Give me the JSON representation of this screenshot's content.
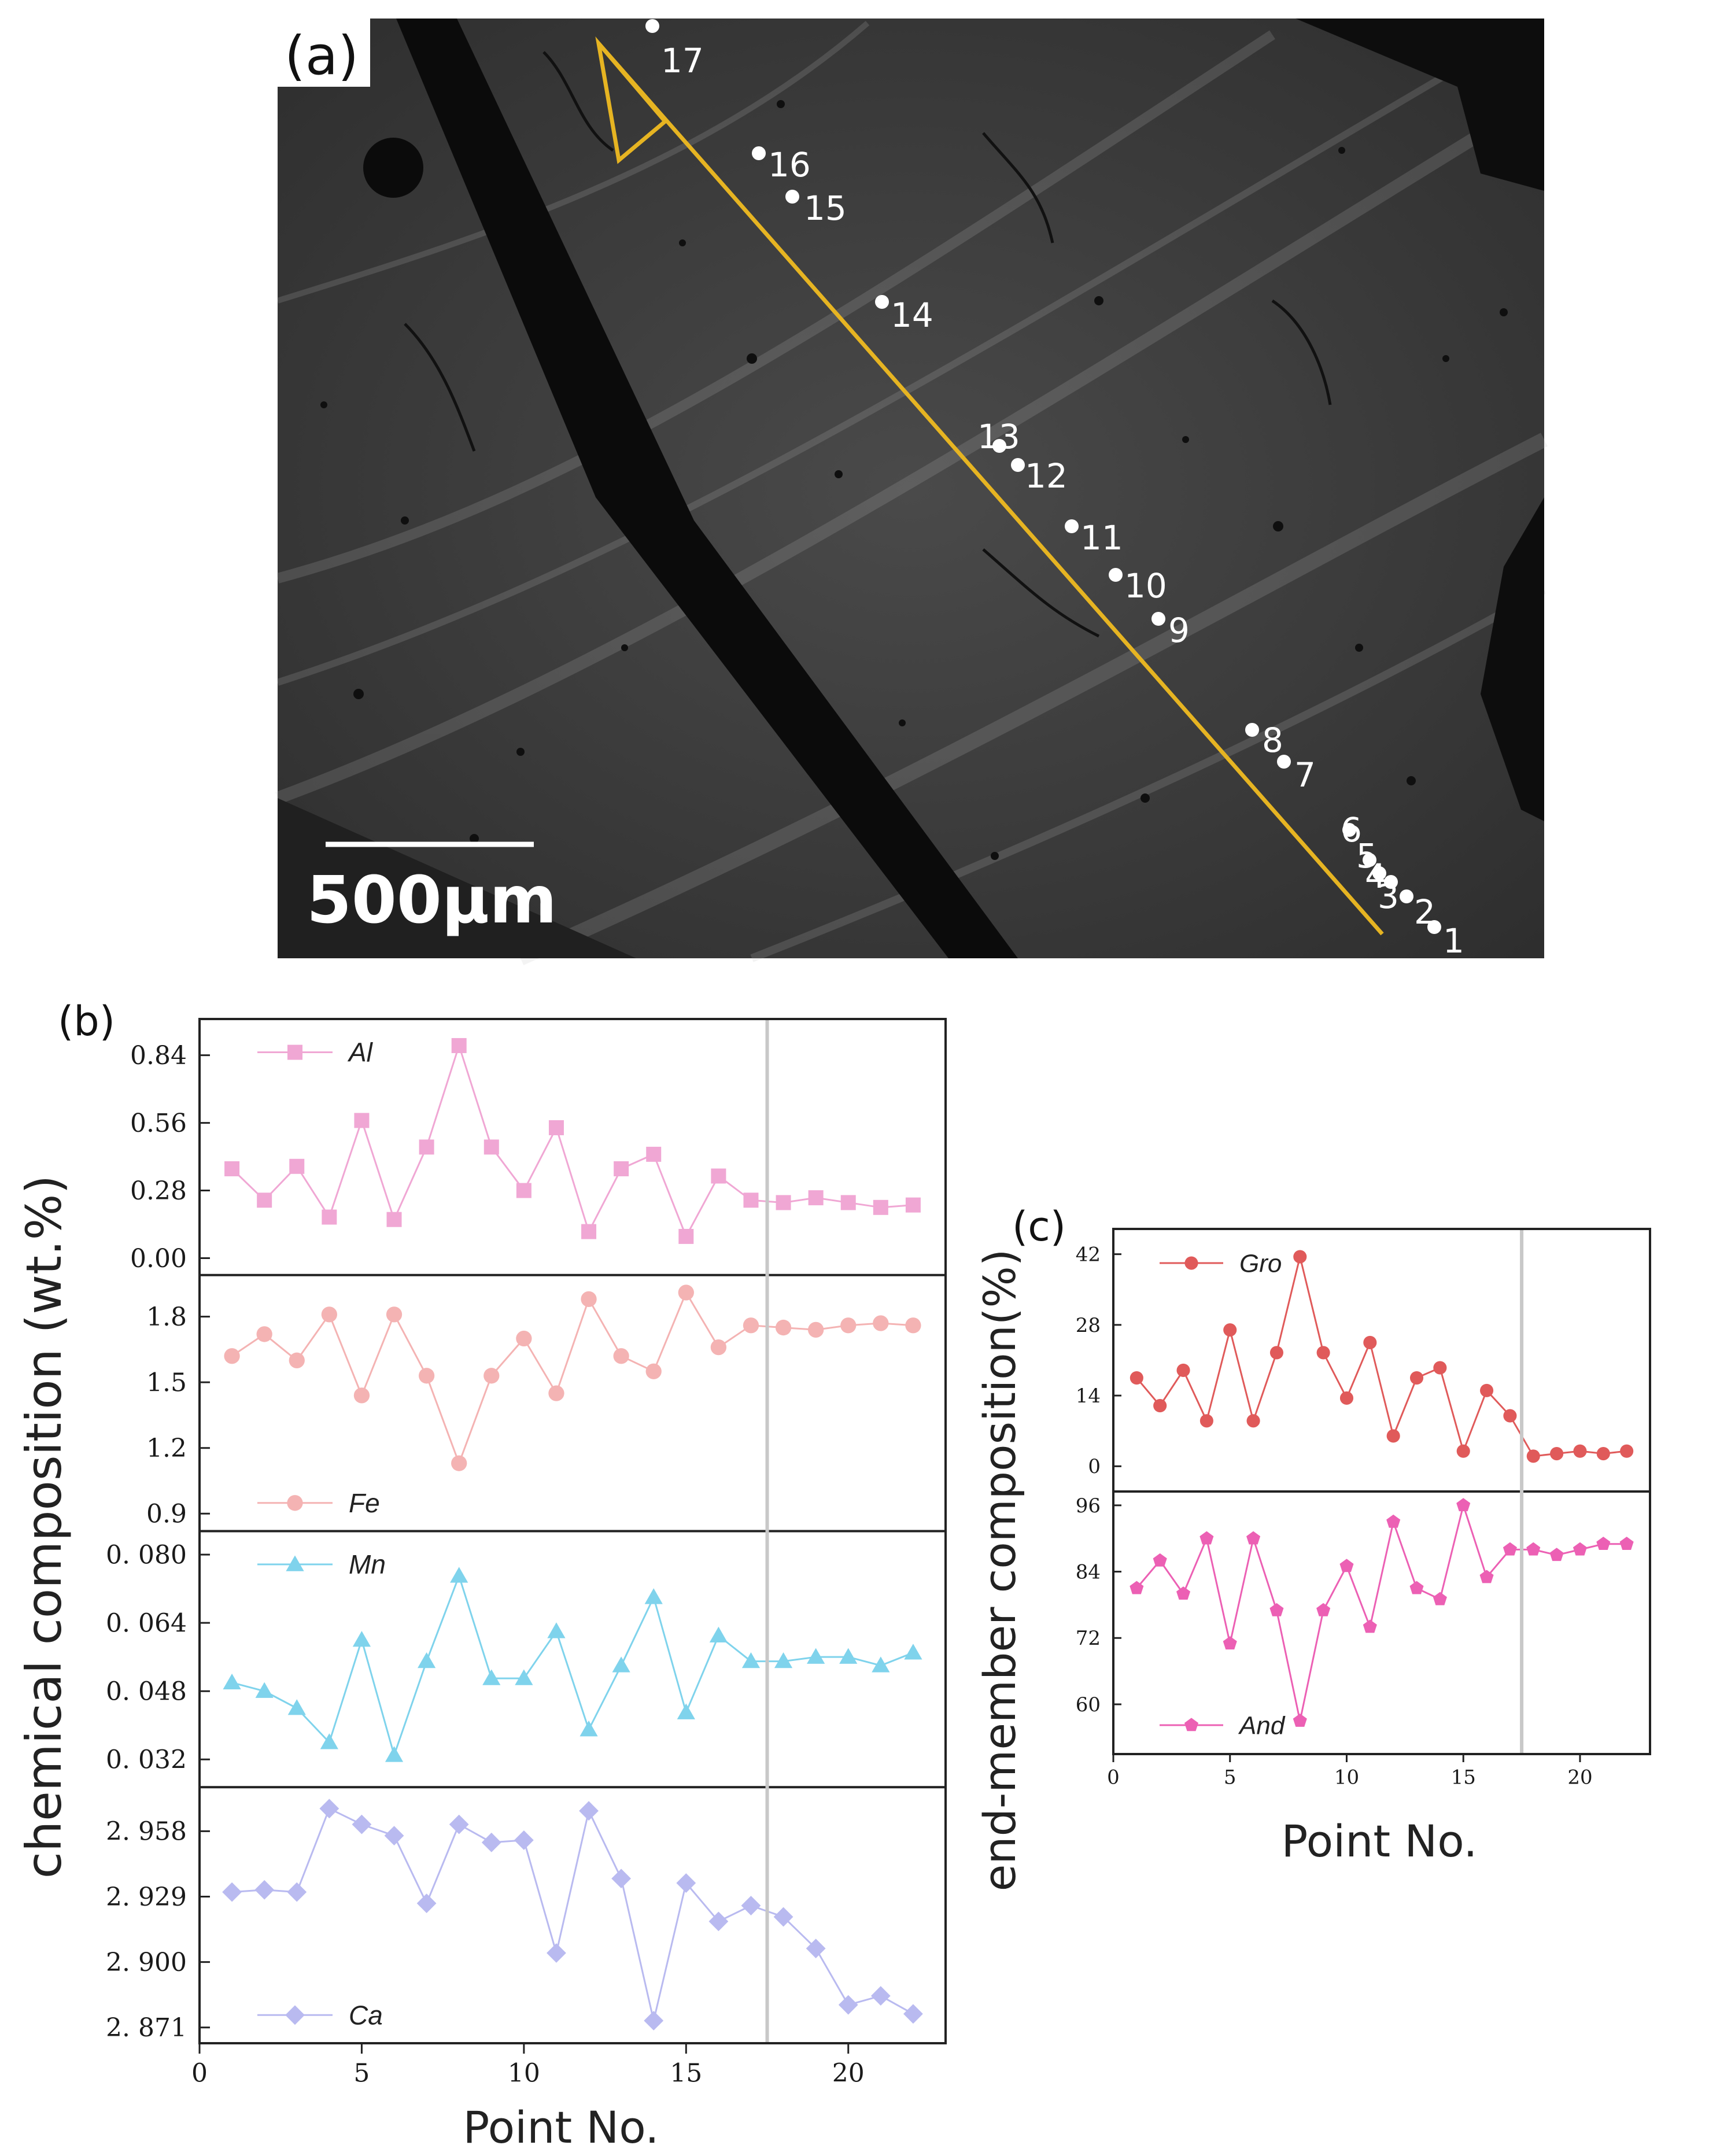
{
  "panel_labels": {
    "a": "(a)",
    "b": "(b)",
    "c": "(c)"
  },
  "image_a": {
    "scale_bar_label": "500μm",
    "point_labels": [
      "1",
      "2",
      "3",
      "4",
      "5",
      "6",
      "7",
      "8",
      "9",
      "10",
      "11",
      "12",
      "13",
      "14",
      "15",
      "16",
      "17"
    ],
    "colors": {
      "line": "#e6b422",
      "background": "#3a3a3a",
      "dark": "#111111",
      "point": "#ffffff"
    }
  },
  "chart_data": [
    {
      "id": "b",
      "type": "line",
      "title": "",
      "ylabel": "chemical composition (wt.%)",
      "xlabel": "Point  No.",
      "xlim": [
        0,
        23
      ],
      "xticks": [
        0,
        5,
        10,
        15,
        20
      ],
      "xtick_labels": [
        "0",
        "5",
        "10",
        "15",
        "20"
      ],
      "divider_x": 17.5,
      "x": [
        1,
        2,
        3,
        4,
        5,
        6,
        7,
        8,
        9,
        10,
        11,
        12,
        13,
        14,
        15,
        16,
        17,
        18,
        19,
        20,
        21,
        22
      ],
      "series": [
        {
          "name": "Al",
          "marker": "square",
          "color": "#f0a7d4",
          "legend_pos": "top-left",
          "ylim": [
            -0.07,
            0.99
          ],
          "ticks": [
            0.0,
            0.28,
            0.56,
            0.84
          ],
          "tick_labels": [
            "0.00",
            "0.28",
            "0.56",
            "0.84"
          ],
          "values": [
            0.37,
            0.24,
            0.38,
            0.17,
            0.57,
            0.16,
            0.46,
            0.88,
            0.46,
            0.28,
            0.54,
            0.11,
            0.37,
            0.43,
            0.09,
            0.34,
            0.24,
            0.23,
            0.25,
            0.23,
            0.21,
            0.22
          ]
        },
        {
          "name": "Fe",
          "marker": "circle",
          "color": "#f4b3b3",
          "legend_pos": "bottom-left",
          "ylim": [
            0.82,
            1.99
          ],
          "ticks": [
            0.9,
            1.2,
            1.5,
            1.8
          ],
          "tick_labels": [
            "0.9",
            "1.2",
            "1.5",
            "1.8"
          ],
          "values": [
            1.62,
            1.72,
            1.6,
            1.81,
            1.44,
            1.81,
            1.53,
            1.13,
            1.53,
            1.7,
            1.45,
            1.88,
            1.62,
            1.55,
            1.91,
            1.66,
            1.76,
            1.75,
            1.74,
            1.76,
            1.77,
            1.76
          ]
        },
        {
          "name": "Mn",
          "marker": "triangle",
          "color": "#7fd3ec",
          "legend_pos": "top-left",
          "ylim": [
            0.0255,
            0.0855
          ],
          "ticks": [
            0.032,
            0.048,
            0.064,
            0.08
          ],
          "tick_labels": [
            "0. 032",
            "0. 048",
            "0. 064",
            "0. 080"
          ],
          "values": [
            0.05,
            0.048,
            0.044,
            0.036,
            0.06,
            0.033,
            0.055,
            0.075,
            0.051,
            0.051,
            0.062,
            0.039,
            0.054,
            0.07,
            0.043,
            0.061,
            0.055,
            0.055,
            0.056,
            0.056,
            0.054,
            0.057
          ]
        },
        {
          "name": "Ca",
          "marker": "diamond",
          "color": "#b9baf0",
          "legend_pos": "bottom-left",
          "ylim": [
            2.864,
            2.9775
          ],
          "ticks": [
            2.871,
            2.9,
            2.929,
            2.958
          ],
          "tick_labels": [
            "2. 871",
            "2. 900",
            "2. 929",
            "2. 958"
          ],
          "values": [
            2.931,
            2.932,
            2.931,
            2.968,
            2.961,
            2.956,
            2.926,
            2.961,
            2.953,
            2.954,
            2.904,
            2.967,
            2.937,
            2.874,
            2.935,
            2.918,
            2.925,
            2.92,
            2.906,
            2.881,
            2.885,
            2.877
          ]
        }
      ]
    },
    {
      "id": "c",
      "type": "line",
      "title": "",
      "ylabel": "end-member composition(%)",
      "xlabel": "Point No.",
      "xlim": [
        0,
        23
      ],
      "xticks": [
        0,
        5,
        10,
        15,
        20
      ],
      "xtick_labels": [
        "0",
        "5",
        "10",
        "15",
        "20"
      ],
      "divider_x": 17.5,
      "x": [
        1,
        2,
        3,
        4,
        5,
        6,
        7,
        8,
        9,
        10,
        11,
        12,
        13,
        14,
        15,
        16,
        17,
        18,
        19,
        20,
        21,
        22
      ],
      "series": [
        {
          "name": "Gro",
          "marker": "circle",
          "color": "#e05a5a",
          "legend_pos": "top-left",
          "ylim": [
            -5,
            47
          ],
          "ticks": [
            0,
            14,
            28,
            42
          ],
          "tick_labels": [
            "0",
            "14",
            "28",
            "42"
          ],
          "values": [
            17.5,
            12.0,
            19.0,
            9.0,
            27.0,
            9.0,
            22.5,
            41.5,
            22.5,
            13.5,
            24.5,
            6.0,
            17.5,
            19.5,
            3.0,
            15.0,
            10.0,
            2.0,
            2.5,
            3.0,
            2.5,
            3.0
          ]
        },
        {
          "name": "And",
          "marker": "pentagon",
          "color": "#ec60b4",
          "legend_pos": "bottom-left",
          "ylim": [
            51,
            98.5
          ],
          "ticks": [
            60,
            72,
            84,
            96
          ],
          "tick_labels": [
            "60",
            "72",
            "84",
            "96"
          ],
          "values": [
            81,
            86,
            80,
            90,
            71,
            90,
            77,
            57,
            77,
            85,
            74,
            93,
            81,
            79,
            96,
            83,
            88,
            88,
            87,
            88,
            89,
            89
          ]
        }
      ]
    }
  ]
}
